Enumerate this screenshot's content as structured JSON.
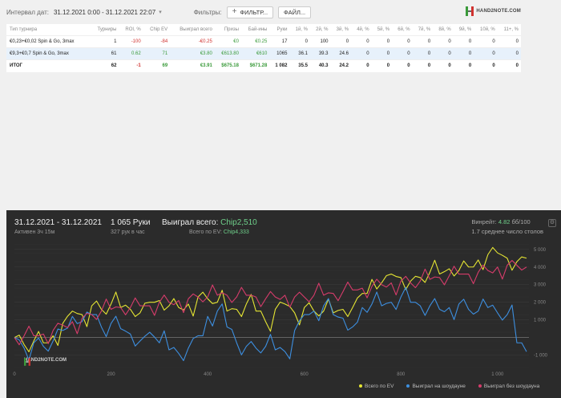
{
  "topbar": {
    "date_label": "Интервал дат:",
    "date_value": "31.12.2021 0:00 - 31.12.2021 22:07",
    "filters_label": "Фильтры:",
    "filter_button": "ФИЛЬТР...",
    "file_button": "ФАЙЛ...",
    "logo_text": "HAND2NOTE.COM"
  },
  "table": {
    "headers": [
      "Тип турнира",
      "Турниры",
      "ROI, %",
      "Chip EV",
      "Выиграл всего",
      "Призы",
      "Бай-ины",
      "Руки",
      "1й, %",
      "2й, %",
      "3й, %",
      "4й, %",
      "5й, %",
      "6й, %",
      "7й, %",
      "8й, %",
      "9й, %",
      "10й, %",
      "11+, %"
    ],
    "rows": [
      [
        "€0,23+€0,02 Spin & Go, 3max",
        "1",
        "-100",
        "-84",
        "-€0.25",
        "€0",
        "€0.25",
        "17",
        "0",
        "100",
        "0",
        "0",
        "0",
        "0",
        "0",
        "0",
        "0",
        "0",
        "0"
      ],
      [
        "€9,3+€0,7 Spin & Go, 3max",
        "61",
        "0.62",
        "71",
        "€3.80",
        "€613.80",
        "€610",
        "1065",
        "36.1",
        "39.3",
        "24.6",
        "0",
        "0",
        "0",
        "0",
        "0",
        "0",
        "0",
        "0"
      ],
      [
        "ИТОГ",
        "62",
        "-1",
        "69",
        "€3.91",
        "$675.18",
        "$671.28",
        "1 082",
        "35.5",
        "40.3",
        "24.2",
        "0",
        "0",
        "0",
        "0",
        "0",
        "0",
        "0",
        "0"
      ]
    ]
  },
  "panel": {
    "date_range": "31.12.2021 - 31.12.2021",
    "active": "Активен 3ч 15м",
    "hands": "1 065 Руки",
    "rate": "327 рук в час",
    "won_label": "Выиграл всего:",
    "won_value": "Chip2,510",
    "ev_label": "Всего по EV:",
    "ev_value": "Chip4,333",
    "winrate_label": "Винрейт:",
    "winrate_value": "4.82",
    "winrate_suffix": "бб/100",
    "avg_tables": "1.7 среднее число столов"
  },
  "colors": {
    "ev": "#e6e633",
    "showdown": "#3d8fe0",
    "nonshowdown": "#d63c6b",
    "accent": "#6fd08a"
  },
  "chart_data": {
    "type": "line",
    "xlim": [
      0,
      1065
    ],
    "ylim": [
      -1700,
      5400
    ],
    "x_ticks": [
      "0",
      "200",
      "400",
      "600",
      "800",
      "1 000"
    ],
    "x_tick_values": [
      0,
      200,
      400,
      600,
      800,
      1000
    ],
    "y_ticks": [
      "5 000",
      "4 000",
      "3 000",
      "2 000",
      "1 000",
      "-1 000"
    ],
    "y_tick_values": [
      5000,
      4000,
      3000,
      2000,
      1000,
      -1000
    ],
    "series": [
      {
        "name": "Всего по EV",
        "color": "#e6e633",
        "x": [
          0,
          20,
          40,
          60,
          80,
          100,
          120,
          140,
          160,
          180,
          200,
          220,
          240,
          260,
          280,
          300,
          320,
          340,
          360,
          380,
          400,
          420,
          440,
          460,
          480,
          500,
          520,
          540,
          560,
          580,
          600,
          620,
          640,
          660,
          680,
          700,
          720,
          740,
          760,
          780,
          800,
          820,
          840,
          860,
          880,
          900,
          920,
          940,
          960,
          980,
          1000,
          1020,
          1040,
          1060
        ],
        "y": [
          0,
          -400,
          -200,
          -300,
          100,
          800,
          1500,
          1300,
          1800,
          1600,
          1900,
          1700,
          1600,
          1400,
          2000,
          2100,
          1800,
          1700,
          1900,
          2300,
          2200,
          2000,
          1500,
          1600,
          1900,
          1500,
          900,
          1600,
          1900,
          1400,
          1700,
          1500,
          1500,
          1400,
          1600,
          1700,
          2500,
          3300,
          3100,
          3600,
          3400,
          3200,
          3400,
          3700,
          3600,
          3900,
          3800,
          4000,
          4400,
          4700,
          4800,
          4500,
          4300,
          4500
        ]
      },
      {
        "name": "Выиграл на шоудауне",
        "color": "#3d8fe0",
        "x": [
          0,
          20,
          40,
          60,
          80,
          100,
          120,
          140,
          160,
          180,
          200,
          220,
          240,
          260,
          280,
          300,
          320,
          340,
          360,
          380,
          400,
          420,
          440,
          460,
          480,
          500,
          520,
          540,
          560,
          580,
          600,
          620,
          640,
          660,
          680,
          700,
          720,
          740,
          760,
          780,
          800,
          820,
          840,
          860,
          880,
          900,
          920,
          940,
          960,
          980,
          1000,
          1020,
          1040,
          1060
        ],
        "y": [
          0,
          -600,
          -300,
          -500,
          -200,
          400,
          1200,
          900,
          1300,
          600,
          800,
          500,
          200,
          -200,
          300,
          -300,
          -700,
          -900,
          -600,
          100,
          1200,
          1500,
          600,
          -300,
          -500,
          -600,
          -500,
          -700,
          -800,
          400,
          1300,
          1500,
          1800,
          1300,
          1100,
          600,
          1700,
          1900,
          1800,
          2000,
          2300,
          2000,
          1800,
          1800,
          1600,
          1700,
          1900,
          1600,
          1500,
          1700,
          1400,
          1300,
          -300,
          -800
        ]
      },
      {
        "name": "Выиграл без шоудауна",
        "color": "#d63c6b",
        "x": [
          0,
          20,
          40,
          60,
          80,
          100,
          120,
          140,
          160,
          180,
          200,
          220,
          240,
          260,
          280,
          300,
          320,
          340,
          360,
          380,
          400,
          420,
          440,
          460,
          480,
          500,
          520,
          540,
          560,
          580,
          600,
          620,
          640,
          660,
          680,
          700,
          720,
          740,
          760,
          780,
          800,
          820,
          840,
          860,
          880,
          900,
          920,
          940,
          960,
          980,
          1000,
          1020,
          1040,
          1060
        ],
        "y": [
          0,
          100,
          100,
          200,
          400,
          700,
          900,
          1100,
          1300,
          1500,
          1600,
          1700,
          1700,
          1800,
          1800,
          2000,
          2000,
          2100,
          2200,
          2300,
          2300,
          2400,
          2400,
          2300,
          2400,
          2300,
          2200,
          2300,
          2400,
          2300,
          2300,
          2400,
          2400,
          2500,
          2600,
          2700,
          2800,
          2900,
          3000,
          3100,
          3200,
          3100,
          3200,
          3300,
          3400,
          3500,
          3600,
          3600,
          3700,
          3800,
          4000,
          4100,
          4100,
          4000
        ]
      }
    ]
  }
}
